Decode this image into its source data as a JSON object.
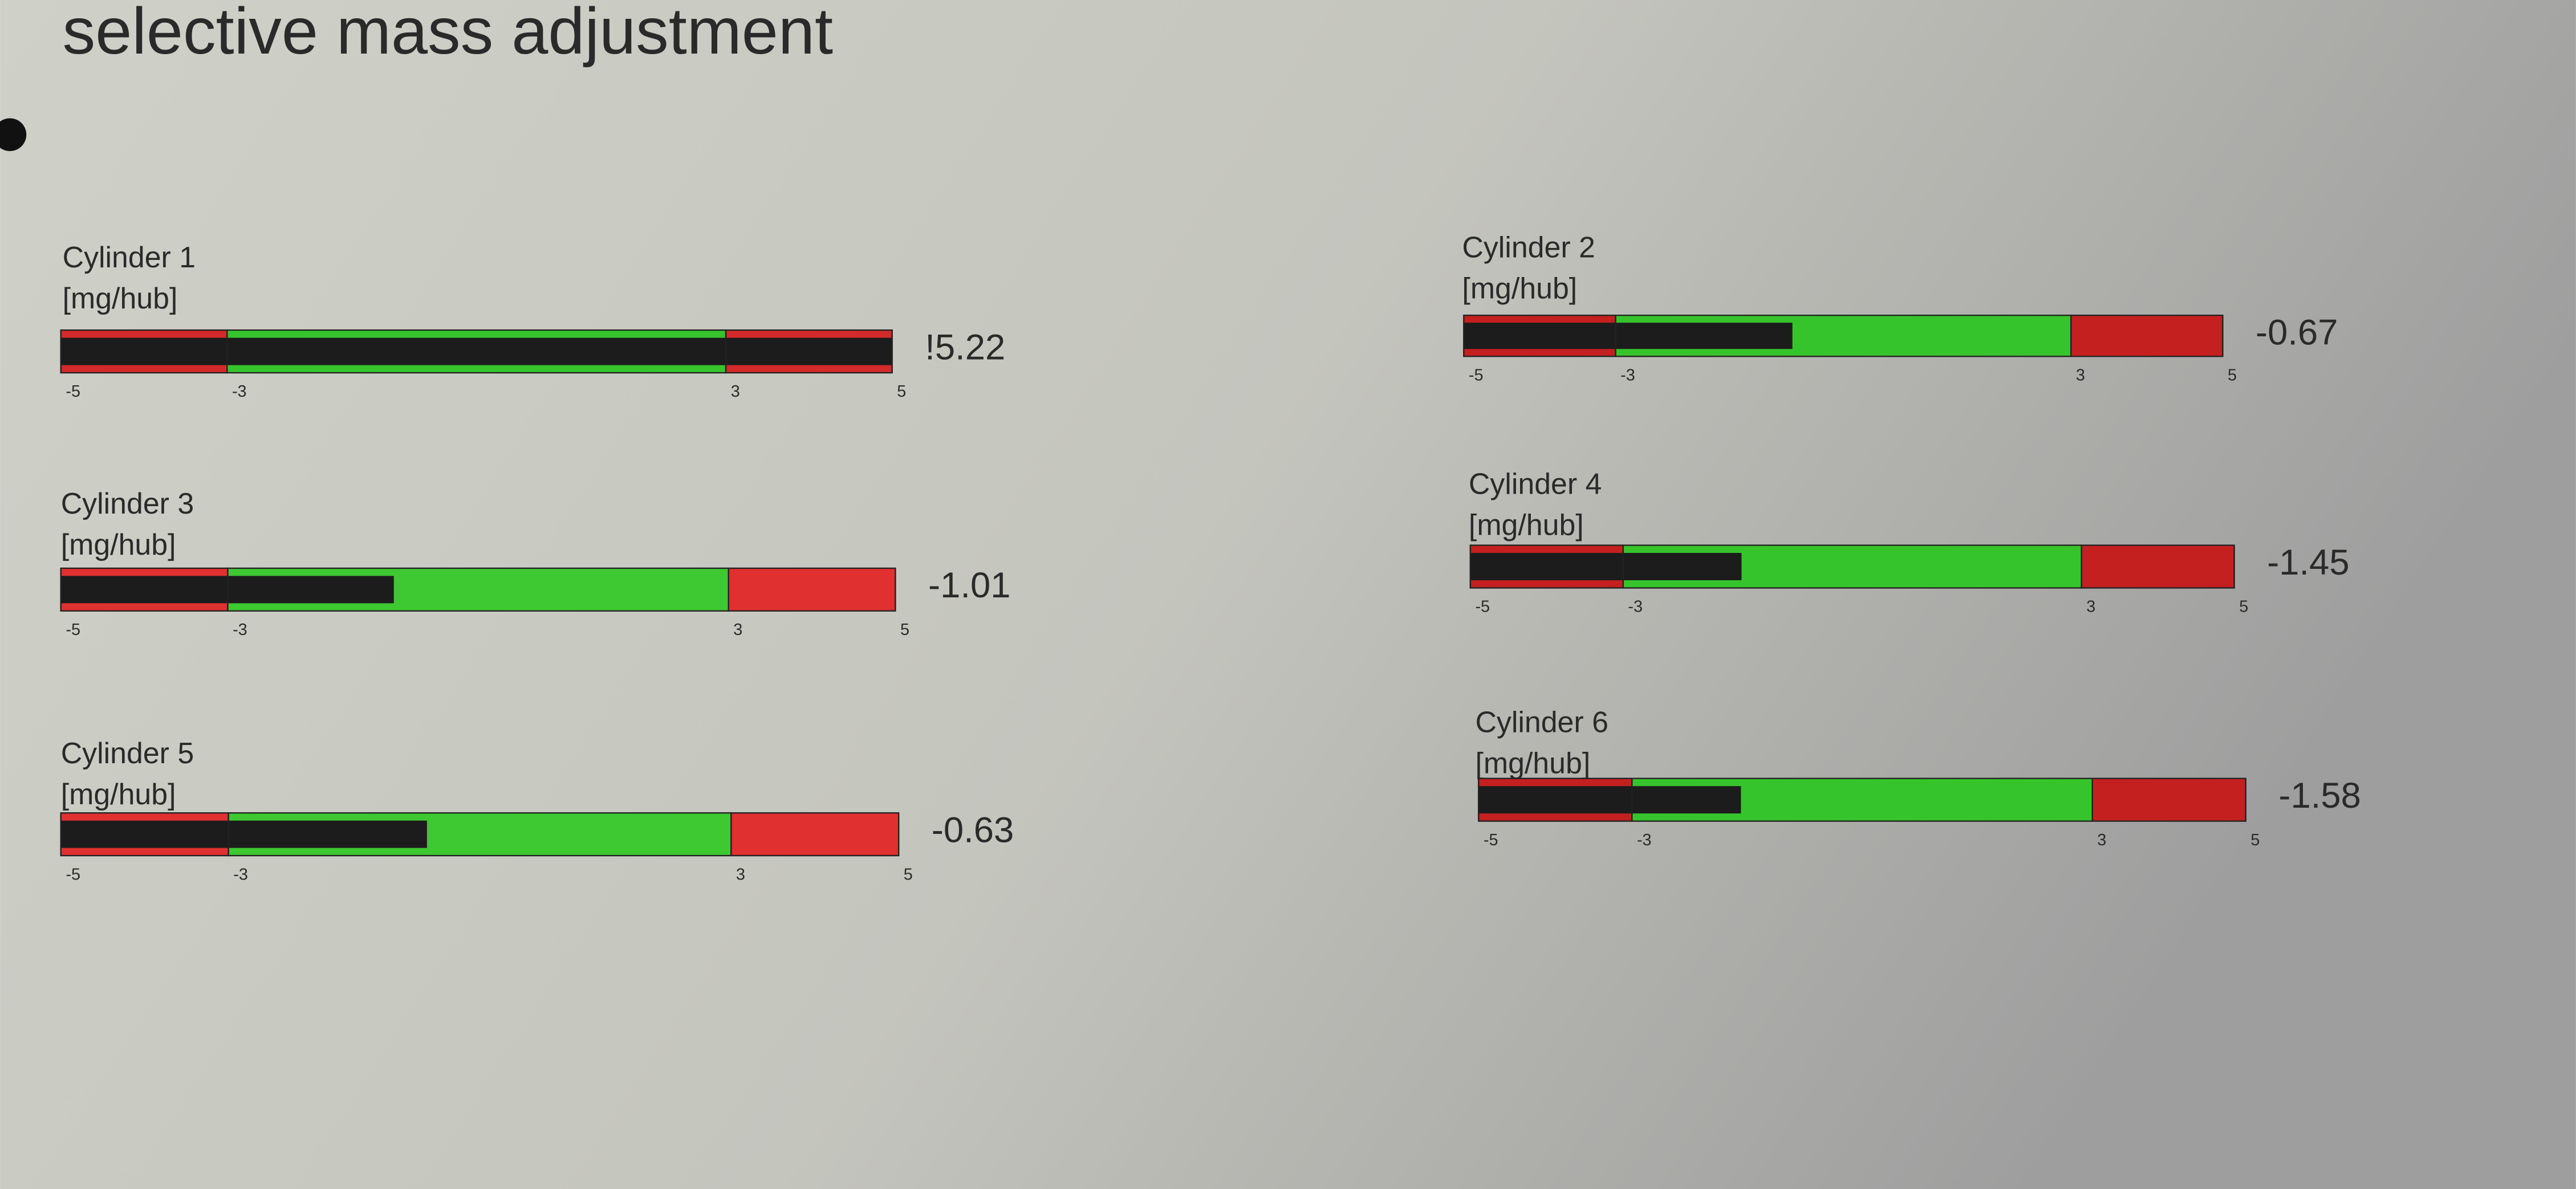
{
  "header": {
    "title": "selective mass adjustment"
  },
  "gauges": [
    {
      "label": "Cylinder 1",
      "unit": "[mg/hub]",
      "value": 5.22,
      "value_label": "!5.22",
      "range": [
        -5,
        5
      ],
      "ticks": [
        -5,
        -3,
        3,
        5
      ],
      "zone_colors": [
        "#d42a2a",
        "#36c42c",
        "#d42a2a"
      ],
      "bar_color": "#1c1c1c"
    },
    {
      "label": "Cylinder 2",
      "unit": "[mg/hub]",
      "value": -0.67,
      "range": [
        -5,
        5
      ],
      "ticks": [
        -5,
        -3,
        3,
        5
      ],
      "zone_colors": [
        "#c42020",
        "#36c42c",
        "#c42020"
      ],
      "bar_color": "#1c1c1c"
    },
    {
      "label": "Cylinder 3",
      "unit": "[mg/hub]",
      "value": -1.01,
      "range": [
        -5,
        5
      ],
      "ticks": [
        -5,
        -3,
        3,
        5
      ],
      "zone_colors": [
        "#e03030",
        "#3ec832",
        "#e03030"
      ],
      "bar_color": "#1c1c1c"
    },
    {
      "label": "Cylinder 4",
      "unit": "[mg/hub]",
      "value": -1.45,
      "range": [
        -5,
        5
      ],
      "ticks": [
        -5,
        -3,
        3,
        5
      ],
      "zone_colors": [
        "#c42020",
        "#36c42c",
        "#c42020"
      ],
      "bar_color": "#1c1c1c"
    },
    {
      "label": "Cylinder 5",
      "unit": "[mg/hub]",
      "value": -0.63,
      "range": [
        -5,
        5
      ],
      "ticks": [
        -5,
        -3,
        3,
        5
      ],
      "zone_colors": [
        "#e03030",
        "#3ec832",
        "#e03030"
      ],
      "bar_color": "#1c1c1c"
    },
    {
      "label": "Cylinder 6",
      "unit": "[mg/hub]",
      "value": -1.58,
      "range": [
        -5,
        5
      ],
      "ticks": [
        -5,
        -3,
        3,
        5
      ],
      "zone_colors": [
        "#c42020",
        "#36c42c",
        "#c42020"
      ],
      "bar_color": "#1c1c1c"
    }
  ]
}
